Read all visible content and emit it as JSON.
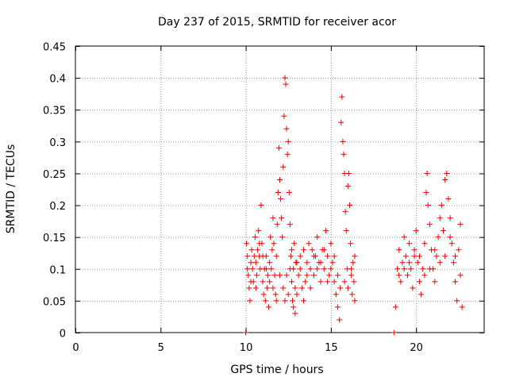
{
  "chart_data": {
    "type": "scatter",
    "title": "Day 237 of 2015, SRMTID for receiver acor",
    "xlabel": "GPS time / hours",
    "ylabel": "SRMTID / TECUs",
    "xlim": [
      0,
      24
    ],
    "ylim": [
      0,
      0.45
    ],
    "xticks": [
      0,
      5,
      10,
      15,
      20
    ],
    "xtick_labels": [
      "0",
      "5",
      "10",
      "15",
      "20"
    ],
    "yticks": [
      0,
      0.05,
      0.1,
      0.15,
      0.2,
      0.25,
      0.3,
      0.35,
      0.4,
      0.45
    ],
    "ytick_labels": [
      "0",
      "0.05",
      "0.1",
      "0.15",
      "0.2",
      "0.25",
      "0.3",
      "0.35",
      "0.4",
      "0.45"
    ],
    "grid": true,
    "marker": "+",
    "color": "#ee0000",
    "series": [
      {
        "name": "SRMTID",
        "points": [
          [
            10.0,
            0.0
          ],
          [
            10.05,
            0.14
          ],
          [
            10.1,
            0.12
          ],
          [
            10.15,
            0.09
          ],
          [
            10.2,
            0.07
          ],
          [
            10.25,
            0.05
          ],
          [
            10.3,
            0.11
          ],
          [
            10.35,
            0.13
          ],
          [
            10.4,
            0.1
          ],
          [
            10.45,
            0.08
          ],
          [
            10.5,
            0.12
          ],
          [
            10.55,
            0.15
          ],
          [
            10.6,
            0.11
          ],
          [
            10.65,
            0.09
          ],
          [
            10.7,
            0.13
          ],
          [
            10.75,
            0.16
          ],
          [
            10.8,
            0.12
          ],
          [
            10.85,
            0.1
          ],
          [
            10.9,
            0.2
          ],
          [
            10.95,
            0.14
          ],
          [
            11.0,
            0.08
          ],
          [
            11.05,
            0.06
          ],
          [
            11.1,
            0.1
          ],
          [
            11.15,
            0.05
          ],
          [
            11.2,
            0.12
          ],
          [
            11.25,
            0.07
          ],
          [
            11.3,
            0.09
          ],
          [
            11.35,
            0.04
          ],
          [
            11.4,
            0.11
          ],
          [
            11.45,
            0.15
          ],
          [
            11.5,
            0.1
          ],
          [
            11.55,
            0.13
          ],
          [
            11.6,
            0.18
          ],
          [
            11.65,
            0.14
          ],
          [
            11.7,
            0.09
          ],
          [
            11.75,
            0.06
          ],
          [
            11.8,
            0.12
          ],
          [
            11.85,
            0.17
          ],
          [
            11.9,
            0.22
          ],
          [
            11.95,
            0.29
          ],
          [
            12.0,
            0.24
          ],
          [
            12.05,
            0.21
          ],
          [
            12.1,
            0.18
          ],
          [
            12.15,
            0.15
          ],
          [
            12.2,
            0.26
          ],
          [
            12.25,
            0.34
          ],
          [
            12.3,
            0.4
          ],
          [
            12.35,
            0.39
          ],
          [
            12.4,
            0.32
          ],
          [
            12.45,
            0.28
          ],
          [
            12.5,
            0.3
          ],
          [
            12.55,
            0.22
          ],
          [
            12.6,
            0.17
          ],
          [
            12.65,
            0.12
          ],
          [
            12.7,
            0.08
          ],
          [
            12.75,
            0.05
          ],
          [
            12.8,
            0.1
          ],
          [
            12.85,
            0.14
          ],
          [
            12.9,
            0.07
          ],
          [
            12.95,
            0.11
          ],
          [
            12.2,
            0.07
          ],
          [
            12.3,
            0.05
          ],
          [
            12.4,
            0.09
          ],
          [
            12.5,
            0.06
          ],
          [
            12.6,
            0.1
          ],
          [
            12.7,
            0.13
          ],
          [
            12.8,
            0.04
          ],
          [
            12.9,
            0.03
          ],
          [
            13.0,
            0.06
          ],
          [
            13.1,
            0.09
          ],
          [
            13.2,
            0.12
          ],
          [
            13.3,
            0.07
          ],
          [
            13.4,
            0.05
          ],
          [
            13.5,
            0.08
          ],
          [
            13.6,
            0.11
          ],
          [
            13.7,
            0.14
          ],
          [
            13.8,
            0.1
          ],
          [
            13.9,
            0.13
          ],
          [
            14.0,
            0.09
          ],
          [
            14.1,
            0.12
          ],
          [
            14.2,
            0.15
          ],
          [
            14.3,
            0.11
          ],
          [
            14.4,
            0.08
          ],
          [
            14.5,
            0.13
          ],
          [
            14.6,
            0.1
          ],
          [
            14.7,
            0.16
          ],
          [
            14.8,
            0.12
          ],
          [
            14.9,
            0.09
          ],
          [
            15.0,
            0.14
          ],
          [
            15.1,
            0.11
          ],
          [
            15.2,
            0.08
          ],
          [
            15.3,
            0.06
          ],
          [
            15.4,
            0.04
          ],
          [
            15.5,
            0.02
          ],
          [
            15.55,
            0.07
          ],
          [
            15.6,
            0.33
          ],
          [
            15.65,
            0.37
          ],
          [
            15.7,
            0.3
          ],
          [
            15.75,
            0.28
          ],
          [
            15.8,
            0.25
          ],
          [
            15.85,
            0.19
          ],
          [
            15.9,
            0.16
          ],
          [
            15.95,
            0.1
          ],
          [
            16.0,
            0.23
          ],
          [
            16.05,
            0.25
          ],
          [
            16.1,
            0.2
          ],
          [
            16.15,
            0.14
          ],
          [
            16.2,
            0.09
          ],
          [
            16.25,
            0.06
          ],
          [
            16.3,
            0.11
          ],
          [
            16.35,
            0.08
          ],
          [
            16.4,
            0.05
          ],
          [
            10.1,
            0.1
          ],
          [
            10.3,
            0.08
          ],
          [
            10.6,
            0.07
          ],
          [
            10.8,
            0.14
          ],
          [
            11.0,
            0.12
          ],
          [
            11.2,
            0.1
          ],
          [
            11.4,
            0.08
          ],
          [
            11.6,
            0.07
          ],
          [
            11.8,
            0.05
          ],
          [
            12.0,
            0.09
          ],
          [
            13.0,
            0.11
          ],
          [
            13.2,
            0.1
          ],
          [
            13.4,
            0.13
          ],
          [
            13.6,
            0.09
          ],
          [
            13.8,
            0.07
          ],
          [
            14.0,
            0.12
          ],
          [
            14.2,
            0.1
          ],
          [
            14.4,
            0.11
          ],
          [
            14.6,
            0.13
          ],
          [
            14.8,
            0.08
          ],
          [
            15.0,
            0.1
          ],
          [
            15.2,
            0.12
          ],
          [
            15.4,
            0.09
          ],
          [
            15.8,
            0.08
          ],
          [
            16.0,
            0.07
          ],
          [
            16.2,
            0.1
          ],
          [
            16.4,
            0.12
          ],
          [
            18.7,
            0.0
          ],
          [
            18.8,
            0.04
          ],
          [
            18.9,
            0.1
          ],
          [
            19.0,
            0.13
          ],
          [
            19.1,
            0.08
          ],
          [
            19.2,
            0.11
          ],
          [
            19.3,
            0.15
          ],
          [
            19.4,
            0.12
          ],
          [
            19.5,
            0.09
          ],
          [
            19.6,
            0.14
          ],
          [
            19.7,
            0.1
          ],
          [
            19.8,
            0.07
          ],
          [
            19.9,
            0.12
          ],
          [
            20.0,
            0.16
          ],
          [
            20.1,
            0.11
          ],
          [
            20.2,
            0.08
          ],
          [
            20.3,
            0.06
          ],
          [
            20.4,
            0.1
          ],
          [
            20.5,
            0.14
          ],
          [
            20.6,
            0.22
          ],
          [
            20.65,
            0.25
          ],
          [
            20.7,
            0.2
          ],
          [
            20.8,
            0.17
          ],
          [
            20.9,
            0.13
          ],
          [
            21.0,
            0.1
          ],
          [
            21.1,
            0.08
          ],
          [
            21.2,
            0.12
          ],
          [
            21.3,
            0.15
          ],
          [
            21.4,
            0.18
          ],
          [
            21.5,
            0.2
          ],
          [
            21.6,
            0.16
          ],
          [
            21.7,
            0.24
          ],
          [
            21.8,
            0.25
          ],
          [
            21.9,
            0.21
          ],
          [
            22.0,
            0.18
          ],
          [
            22.1,
            0.14
          ],
          [
            22.2,
            0.11
          ],
          [
            22.3,
            0.08
          ],
          [
            22.4,
            0.05
          ],
          [
            22.5,
            0.13
          ],
          [
            22.6,
            0.17
          ],
          [
            22.7,
            0.04
          ],
          [
            19.0,
            0.09
          ],
          [
            19.3,
            0.1
          ],
          [
            19.6,
            0.11
          ],
          [
            19.9,
            0.13
          ],
          [
            20.2,
            0.12
          ],
          [
            20.5,
            0.09
          ],
          [
            20.8,
            0.1
          ],
          [
            21.1,
            0.13
          ],
          [
            21.4,
            0.11
          ],
          [
            21.7,
            0.12
          ],
          [
            22.0,
            0.15
          ],
          [
            22.3,
            0.12
          ],
          [
            22.6,
            0.09
          ]
        ]
      }
    ]
  }
}
